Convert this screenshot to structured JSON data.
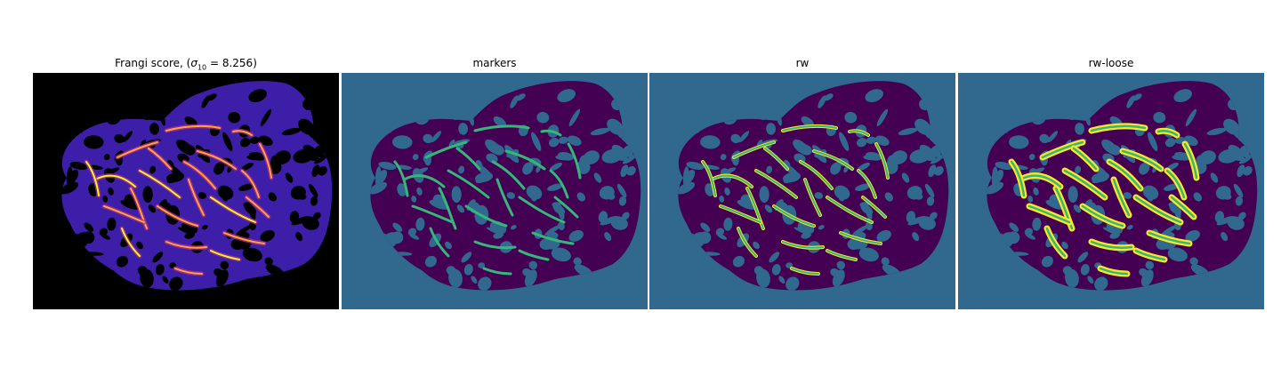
{
  "colors": {
    "score_background": "#000000",
    "score_low": "#3c1ea8",
    "score_mid": "#b12a90",
    "score_high": "#fca636",
    "score_peak": "#f0f921",
    "seg_background": "#31688e",
    "seg_tissue": "#440154",
    "seg_marker": "#35b779",
    "seg_vessel": "#fde725"
  },
  "panels": [
    {
      "id": "frangi",
      "title_prefix": "Frangi score, (",
      "title_sigma": "σ",
      "title_sub": "10",
      "title_suffix": " = 8.256)",
      "colormap": "plasma"
    },
    {
      "id": "markers",
      "title": "markers",
      "colormap": "viridis"
    },
    {
      "id": "rw",
      "title": "rw",
      "colormap": "viridis"
    },
    {
      "id": "rw-loose",
      "title": "rw-loose",
      "colormap": "viridis"
    }
  ]
}
